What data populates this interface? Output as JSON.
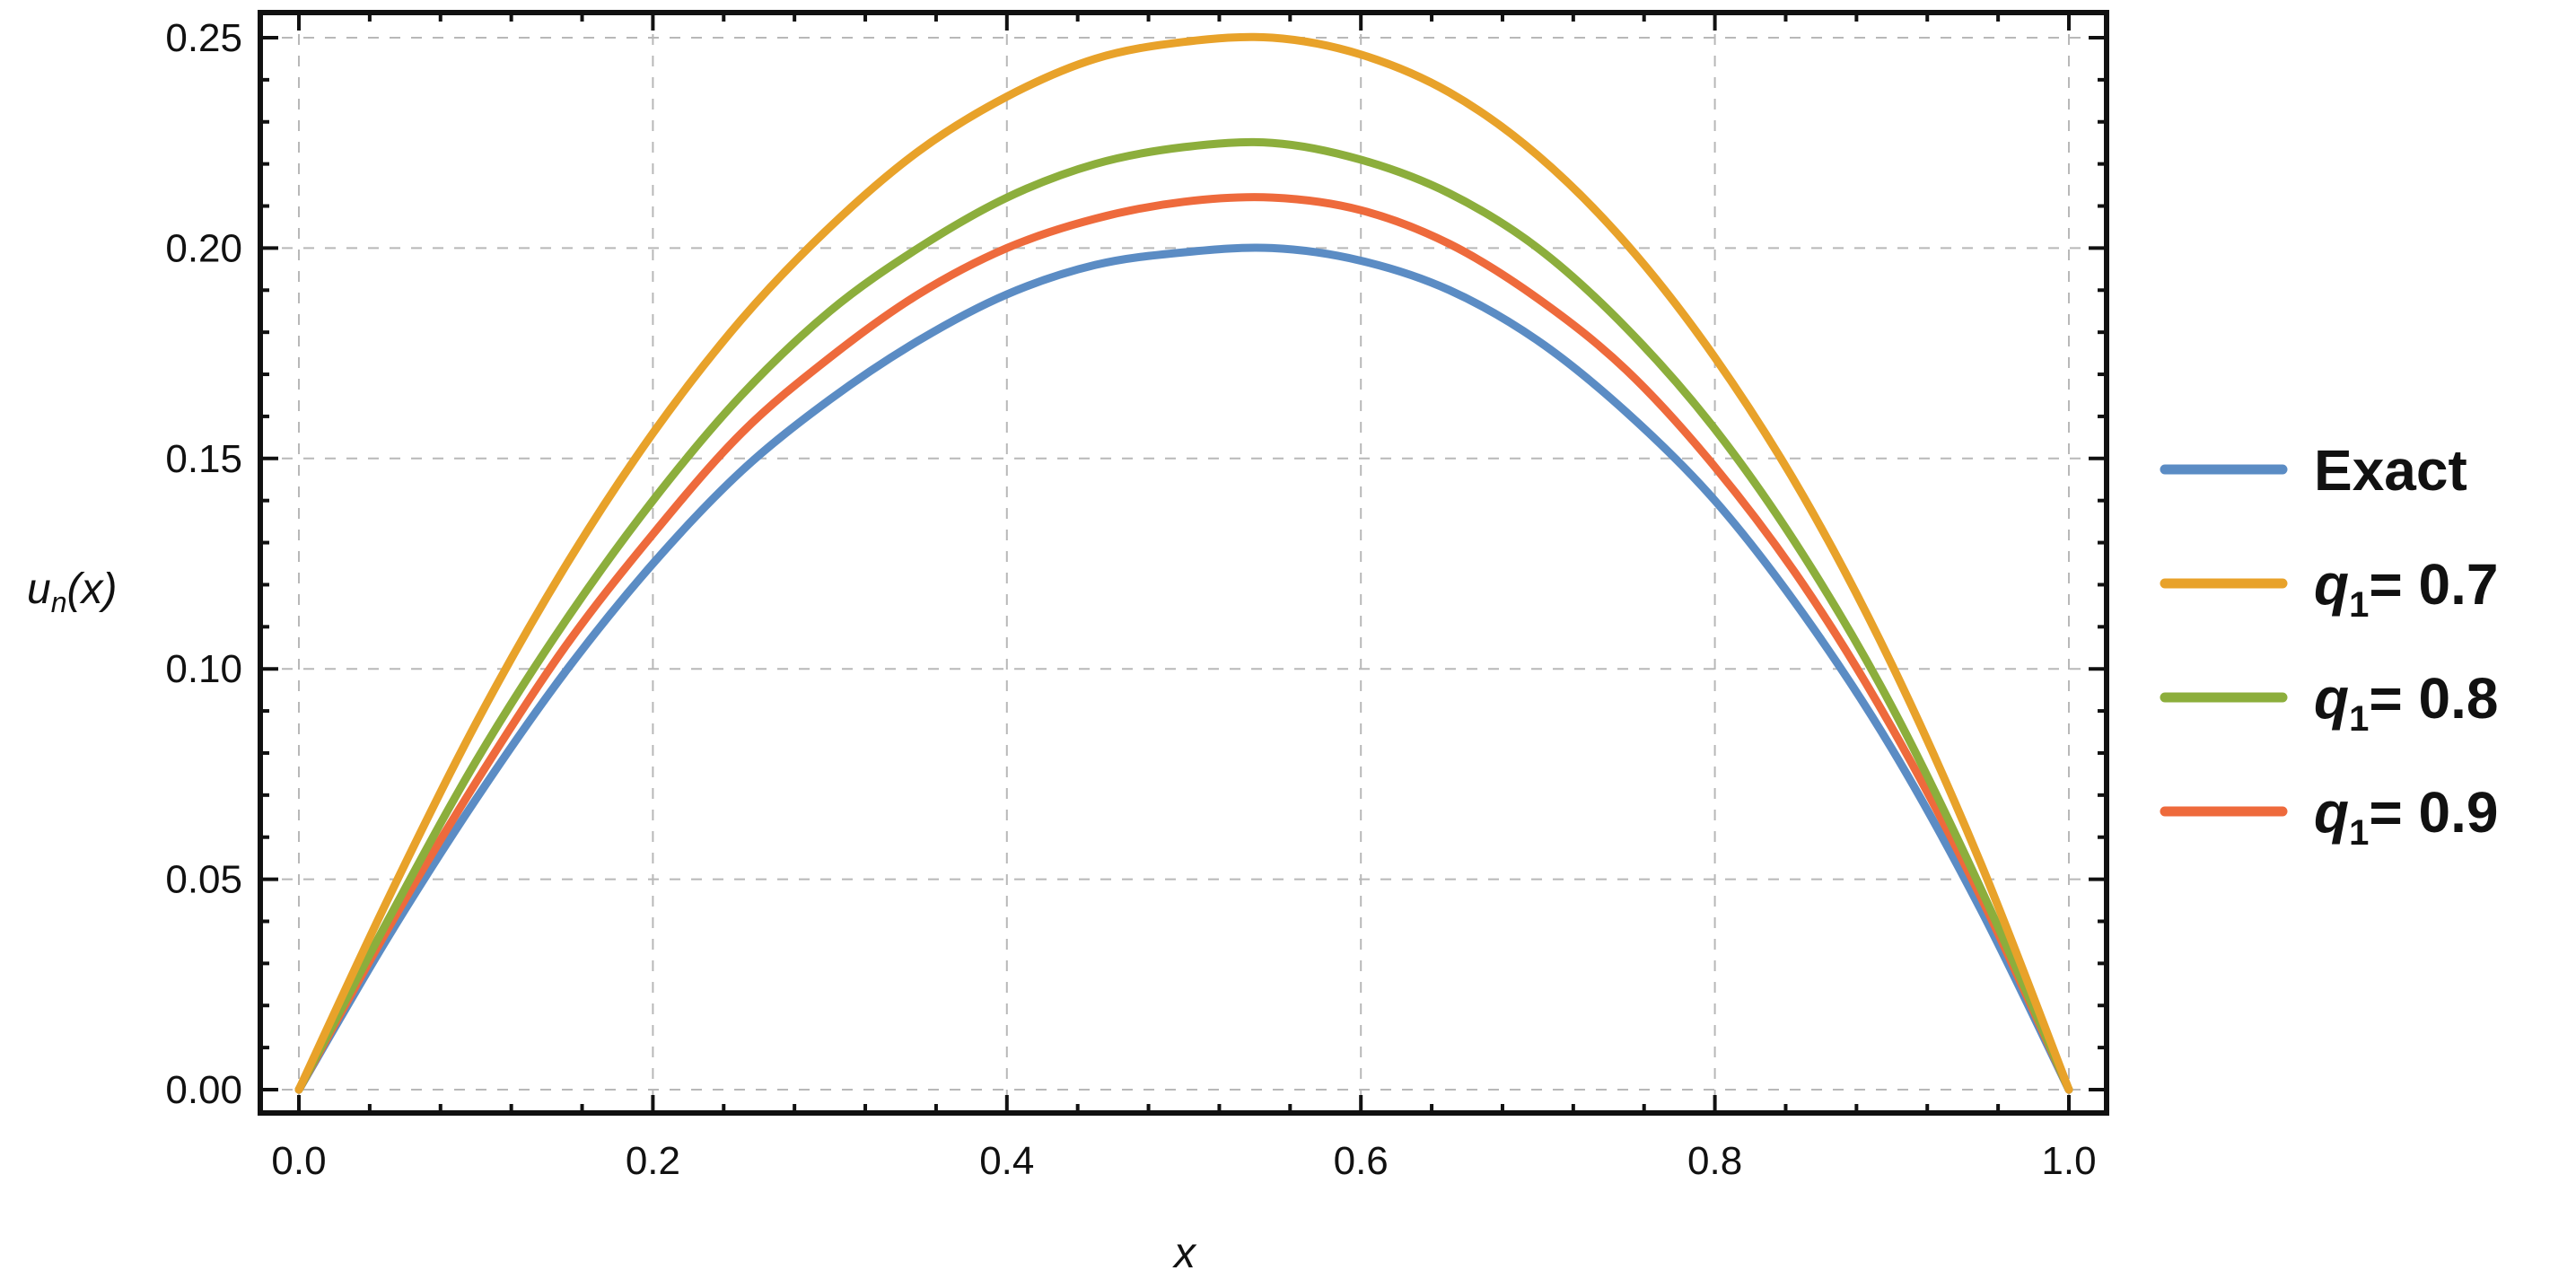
{
  "chart_data": {
    "type": "line",
    "title": "",
    "xlabel": "x",
    "ylabel": {
      "base": "u",
      "sub": "n",
      "rest": "(x)"
    },
    "xlim": [
      0.0,
      1.0
    ],
    "ylim": [
      0.0,
      0.25
    ],
    "xticks": [
      "0.0",
      "0.2",
      "0.4",
      "0.6",
      "0.8",
      "1.0"
    ],
    "yticks": [
      "0.00",
      "0.05",
      "0.10",
      "0.15",
      "0.20",
      "0.25"
    ],
    "grid": true,
    "legend_position": "right",
    "x": [
      0,
      0.05,
      0.1,
      0.15,
      0.2,
      0.25,
      0.3,
      0.35,
      0.4,
      0.45,
      0.5,
      0.55,
      0.6,
      0.65,
      0.7,
      0.75,
      0.8,
      0.85,
      0.9,
      0.95,
      1.0
    ],
    "series": [
      {
        "name": "Exact",
        "color": "#5b8cc4",
        "values": [
          0,
          0.036,
          0.069,
          0.099,
          0.125,
          0.147,
          0.164,
          0.178,
          0.189,
          0.196,
          0.199,
          0.2,
          0.197,
          0.19,
          0.178,
          0.161,
          0.14,
          0.113,
          0.081,
          0.043,
          0
        ]
      },
      {
        "name": "q1= 0.7",
        "label": {
          "base": "q",
          "sub": "1",
          "rest": "= 0.7"
        },
        "color": "#e8a22a",
        "values": [
          0,
          0.045,
          0.087,
          0.124,
          0.156,
          0.183,
          0.205,
          0.223,
          0.236,
          0.245,
          0.249,
          0.25,
          0.246,
          0.237,
          0.222,
          0.201,
          0.174,
          0.141,
          0.101,
          0.054,
          0
        ]
      },
      {
        "name": "q1= 0.8",
        "label": {
          "base": "q",
          "sub": "1",
          "rest": "= 0.8"
        },
        "color": "#8cae3c",
        "values": [
          0,
          0.04,
          0.078,
          0.111,
          0.14,
          0.165,
          0.185,
          0.2,
          0.212,
          0.22,
          0.224,
          0.225,
          0.221,
          0.213,
          0.2,
          0.181,
          0.157,
          0.127,
          0.091,
          0.048,
          0
        ]
      },
      {
        "name": "q1= 0.9",
        "label": {
          "base": "q",
          "sub": "1",
          "rest": "= 0.9"
        },
        "color": "#ee6a3c",
        "values": [
          0,
          0.038,
          0.073,
          0.105,
          0.132,
          0.156,
          0.174,
          0.189,
          0.2,
          0.207,
          0.211,
          0.212,
          0.209,
          0.201,
          0.188,
          0.171,
          0.148,
          0.12,
          0.086,
          0.046,
          0
        ]
      }
    ]
  }
}
